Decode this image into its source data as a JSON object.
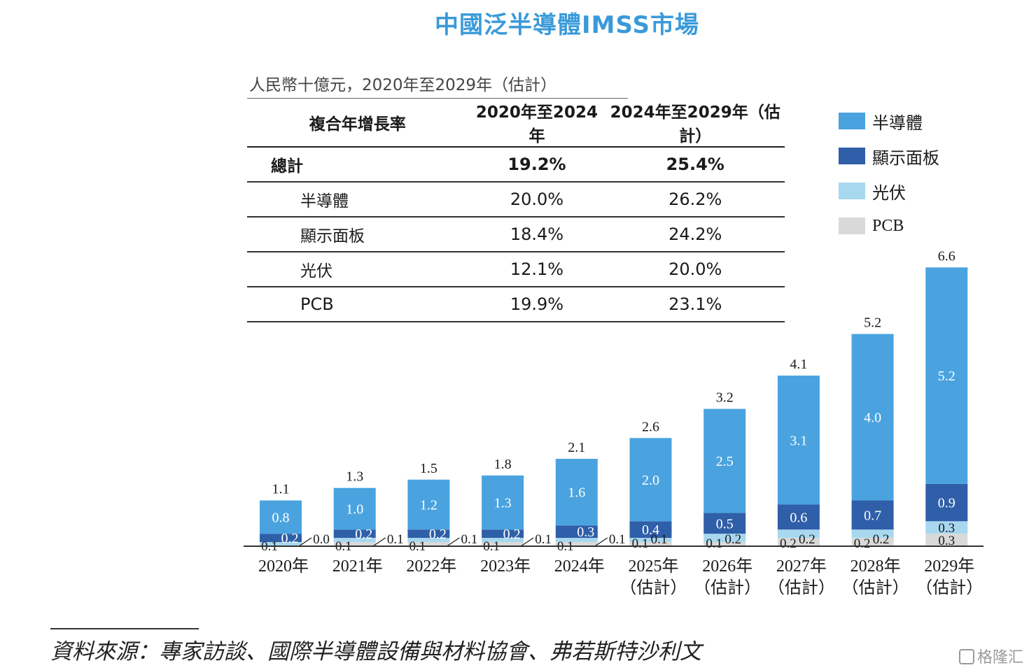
{
  "title": "中國泛半導體IMSS市場",
  "unit": "人民幣十億元，2020年至2029年（估計）",
  "cagr_table": {
    "headers": [
      "複合年增長率",
      "2020年至2024年",
      "2024年至2029年（估計）"
    ],
    "rows": [
      {
        "label": "總計",
        "a": "19.2%",
        "b": "25.4%"
      },
      {
        "label": "半導體",
        "a": "20.0%",
        "b": "26.2%"
      },
      {
        "label": "顯示面板",
        "a": "18.4%",
        "b": "24.2%"
      },
      {
        "label": "光伏",
        "a": "12.1%",
        "b": "20.0%"
      },
      {
        "label": "PCB",
        "a": "19.9%",
        "b": "23.1%"
      }
    ]
  },
  "colors": {
    "semiconductor": "#4aa3df",
    "display": "#2f5fa8",
    "pv": "#a8d8ef",
    "pcb": "#d9d9d9",
    "title": "#3a9ad9"
  },
  "chart_data": {
    "type": "bar",
    "stacked": true,
    "categories": [
      "2020年",
      "2021年",
      "2022年",
      "2023年",
      "2024年",
      "2025年\n（估計）",
      "2026年\n（估計）",
      "2027年\n（估計）",
      "2028年\n（估計）",
      "2029年\n（估計）"
    ],
    "series": [
      {
        "name": "PCB",
        "values": [
          0.0,
          0.1,
          0.1,
          0.1,
          0.1,
          0.1,
          0.1,
          0.2,
          0.2,
          0.3
        ]
      },
      {
        "name": "光伏",
        "values": [
          0.1,
          0.1,
          0.1,
          0.1,
          0.1,
          0.1,
          0.2,
          0.2,
          0.2,
          0.3
        ]
      },
      {
        "name": "顯示面板",
        "values": [
          0.2,
          0.2,
          0.2,
          0.2,
          0.3,
          0.4,
          0.5,
          0.6,
          0.7,
          0.9
        ]
      },
      {
        "name": "半導體",
        "values": [
          0.8,
          1.0,
          1.2,
          1.3,
          1.6,
          2.0,
          2.5,
          3.1,
          4.0,
          5.2
        ]
      }
    ],
    "totals": [
      1.1,
      1.3,
      1.5,
      1.8,
      2.1,
      2.6,
      3.2,
      4.1,
      5.2,
      6.6
    ],
    "legend": [
      "半導體",
      "顯示面板",
      "光伏",
      "PCB"
    ],
    "legend_position": "top-right",
    "grid": false,
    "ylim": [
      0,
      6.6
    ]
  },
  "source": "資料來源：專家訪談、國際半導體設備與材料協會、弗若斯特沙利文",
  "watermark": "格隆汇"
}
